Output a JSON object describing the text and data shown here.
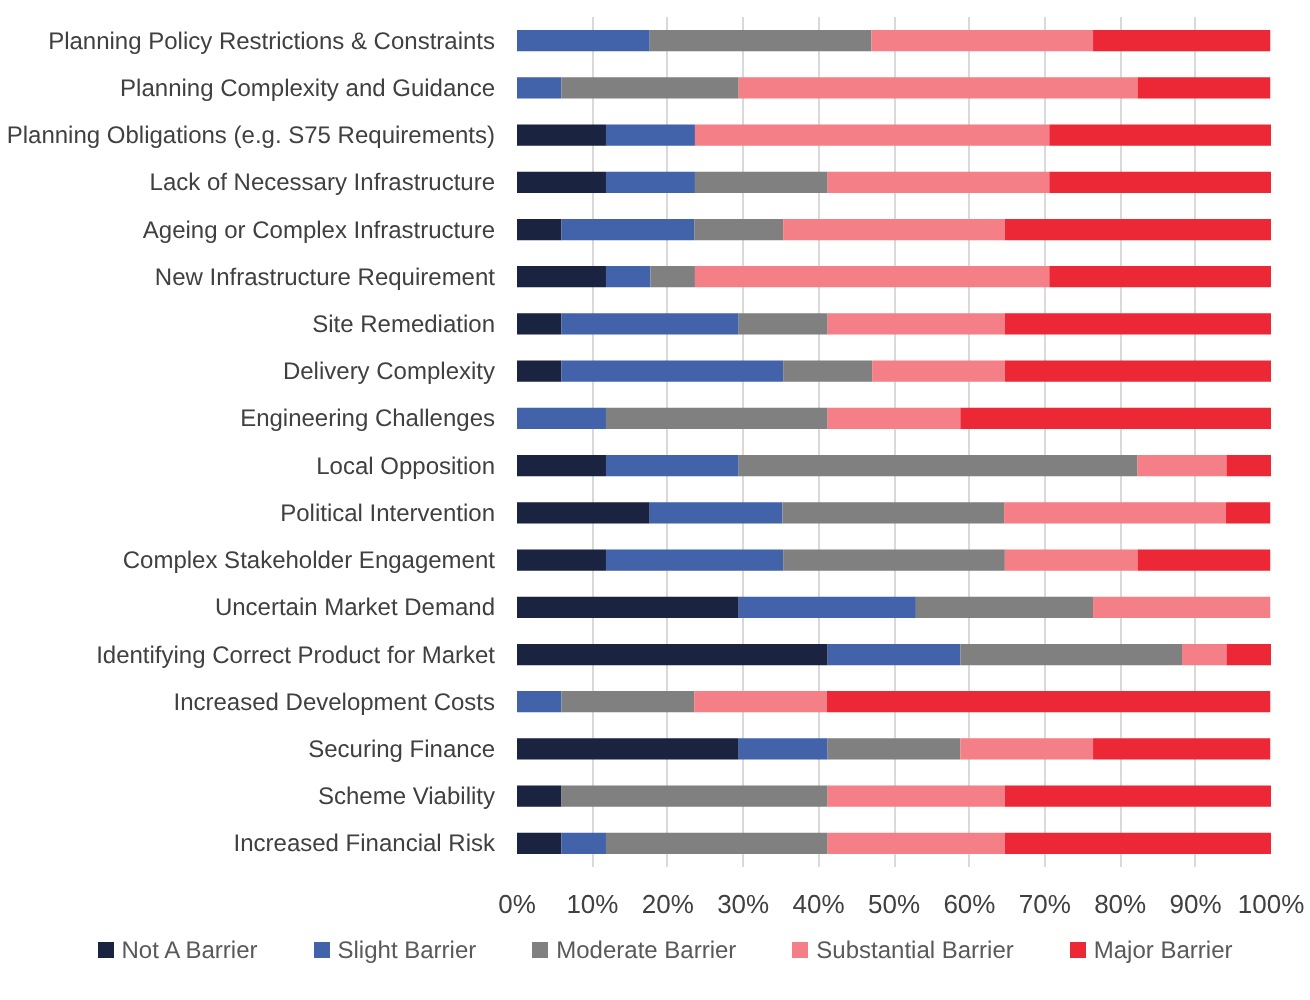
{
  "chart_data": {
    "type": "bar",
    "orientation": "horizontal",
    "stacked": true,
    "categories": [
      "Planning Policy Restrictions & Constraints",
      "Planning Complexity and Guidance",
      "Planning Obligations (e.g. S75 Requirements)",
      "Lack of Necessary Infrastructure",
      "Ageing or Complex Infrastructure",
      "New Infrastructure Requirement",
      "Site Remediation",
      "Delivery Complexity",
      "Engineering Challenges",
      "Local Opposition",
      "Political Intervention",
      "Complex Stakeholder Engagement",
      "Uncertain Market Demand",
      "Identifying Correct Product for Market",
      "Increased Development Costs",
      "Securing Finance",
      "Scheme Viability",
      "Increased Financial Risk"
    ],
    "series": [
      {
        "name": "Not A Barrier",
        "color": "#1a2440",
        "values": [
          0,
          0,
          11.8,
          11.8,
          5.9,
          11.8,
          5.9,
          5.9,
          0,
          11.8,
          17.6,
          11.8,
          29.4,
          41.2,
          0,
          29.4,
          5.9,
          5.9
        ]
      },
      {
        "name": "Slight Barrier",
        "color": "#4263aa",
        "values": [
          17.6,
          5.9,
          11.8,
          11.8,
          17.6,
          5.9,
          23.5,
          29.4,
          11.8,
          17.6,
          17.6,
          23.5,
          23.5,
          17.6,
          5.9,
          11.8,
          0,
          5.9
        ]
      },
      {
        "name": "Moderate Barrier",
        "color": "#808080",
        "values": [
          29.4,
          23.5,
          0,
          17.6,
          11.8,
          5.9,
          11.8,
          11.8,
          29.4,
          52.9,
          29.4,
          29.4,
          23.5,
          29.4,
          17.6,
          17.6,
          35.3,
          29.4
        ]
      },
      {
        "name": "Substantial Barrier",
        "color": "#f47f86",
        "values": [
          29.4,
          52.9,
          47.0,
          29.4,
          29.4,
          47.0,
          23.5,
          17.6,
          17.6,
          11.8,
          29.4,
          17.6,
          23.5,
          5.9,
          17.6,
          17.6,
          23.5,
          23.5
        ]
      },
      {
        "name": "Major Barrier",
        "color": "#ec2836",
        "values": [
          23.5,
          17.6,
          29.4,
          29.4,
          35.3,
          29.4,
          35.3,
          35.3,
          41.2,
          5.9,
          5.9,
          17.6,
          0,
          5.9,
          58.8,
          23.5,
          35.3,
          35.3
        ]
      }
    ],
    "xlim": [
      0,
      100
    ],
    "xticks": [
      {
        "value": 0,
        "label": "0%"
      },
      {
        "value": 10,
        "label": "10%"
      },
      {
        "value": 20,
        "label": "20%"
      },
      {
        "value": 30,
        "label": "30%"
      },
      {
        "value": 40,
        "label": "40%"
      },
      {
        "value": 50,
        "label": "50%"
      },
      {
        "value": 60,
        "label": "60%"
      },
      {
        "value": 70,
        "label": "70%"
      },
      {
        "value": 80,
        "label": "80%"
      },
      {
        "value": 90,
        "label": "90%"
      },
      {
        "value": 100,
        "label": "100%"
      }
    ],
    "grid": "x",
    "legend": "bottom"
  }
}
